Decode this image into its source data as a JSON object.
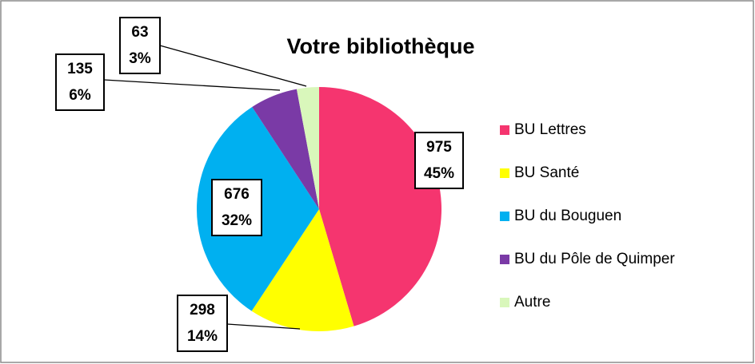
{
  "chart_data": {
    "type": "pie",
    "title": "Votre bibliothèque",
    "categories": [
      "BU Lettres",
      "BU Santé",
      "BU du Bouguen",
      "BU du Pôle de Quimper",
      "Autre"
    ],
    "values": [
      975,
      298,
      676,
      135,
      63
    ],
    "percent_labels": [
      "45%",
      "14%",
      "32%",
      "6%",
      "3%"
    ],
    "colors": [
      "#f5356f",
      "#ffff00",
      "#00b0f0",
      "#7a3aa6",
      "#d9f7bb"
    ],
    "legend": "right"
  }
}
